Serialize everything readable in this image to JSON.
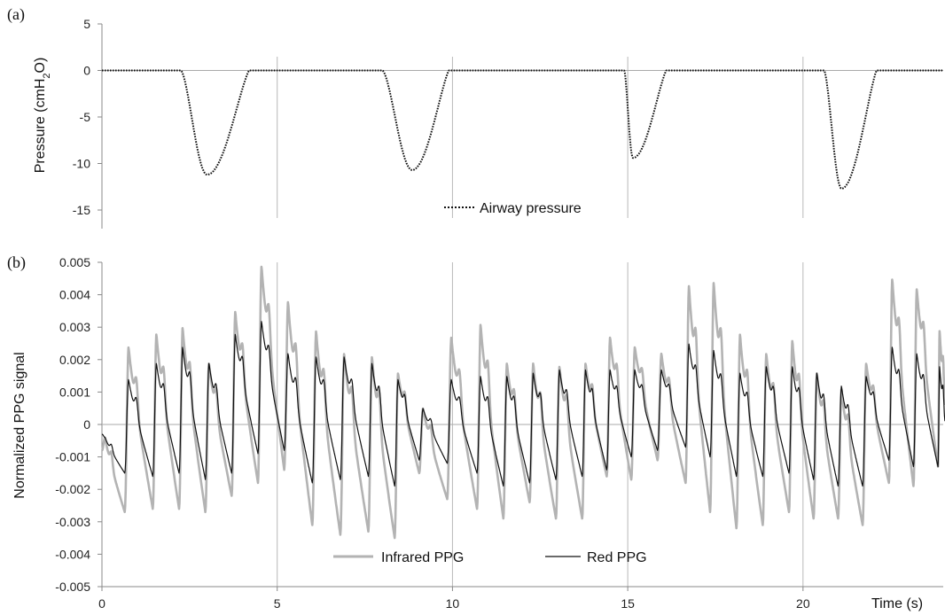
{
  "chart_data": [
    {
      "panel_label": "(a)",
      "type": "scatter",
      "ylabel_main": "Pressure (cmH",
      "ylabel_sub": "2",
      "ylabel_end": "O)",
      "ylim": [
        -17,
        5
      ],
      "yticks": [
        5,
        0,
        -5,
        -10,
        -15
      ],
      "xlim": [
        0,
        24
      ],
      "grid_x": [
        5,
        10,
        15,
        20
      ],
      "legend_placement": "bottom-center",
      "series": [
        {
          "name": "Airway pressure",
          "color": "#111111",
          "style": "dotted",
          "dips": [
            {
              "start": 2.25,
              "min_t": 3.0,
              "min": -11.2,
              "end": 4.2
            },
            {
              "start": 8.0,
              "min_t": 8.85,
              "min": -10.7,
              "end": 9.9
            },
            {
              "start": 14.9,
              "min_t": 15.15,
              "min": -9.4,
              "end": 16.1
            },
            {
              "start": 20.6,
              "min_t": 21.1,
              "min": -12.7,
              "end": 22.1
            }
          ]
        }
      ]
    },
    {
      "panel_label": "(b)",
      "type": "line",
      "ylabel": "Normalized PPG signal",
      "xlabel": "Time (s)",
      "ylim": [
        -0.005,
        0.005
      ],
      "yticks": [
        "0.005",
        "0.004",
        "0.003",
        "0.002",
        "0.001",
        "0",
        "-0.001",
        "-0.002",
        "-0.003",
        "-0.004",
        "-0.005"
      ],
      "xlim": [
        0,
        24
      ],
      "xticks": [
        0,
        5,
        10,
        15,
        20
      ],
      "grid_x": [
        5,
        10,
        15,
        20
      ],
      "legend_placement": "bottom-center",
      "series": [
        {
          "name": "Infrared PPG",
          "color": "#b3b3b3",
          "beat_times": [
            0.0,
            0.65,
            1.45,
            2.2,
            2.95,
            3.7,
            4.45,
            5.2,
            6.0,
            6.8,
            7.6,
            8.35,
            9.05,
            9.85,
            10.7,
            11.45,
            12.2,
            12.95,
            13.7,
            14.4,
            15.1,
            15.85,
            16.65,
            17.35,
            18.1,
            18.85,
            19.6,
            20.3,
            21.0,
            21.7,
            22.45,
            23.15,
            23.85
          ],
          "peaks": [
            -0.0004,
            0.0024,
            0.0028,
            0.003,
            0.0019,
            0.0035,
            0.0049,
            0.0038,
            0.0029,
            0.0022,
            0.0021,
            0.0016,
            0.0005,
            0.0027,
            0.0031,
            0.0019,
            0.0019,
            0.0018,
            0.0019,
            0.0027,
            0.0024,
            0.0022,
            0.0043,
            0.0044,
            0.0028,
            0.0022,
            0.0026,
            0.0016,
            0.0011,
            0.0019,
            0.0045,
            0.0042,
            0.0029
          ],
          "troughs": [
            -0.0008,
            -0.0027,
            -0.0026,
            -0.0026,
            -0.0027,
            -0.0022,
            -0.0018,
            -0.0014,
            -0.0031,
            -0.0034,
            -0.0033,
            -0.0035,
            -0.0015,
            -0.0023,
            -0.0026,
            -0.0029,
            -0.0024,
            -0.0029,
            -0.0029,
            -0.0016,
            -0.0017,
            -0.0011,
            -0.0018,
            -0.0027,
            -0.0032,
            -0.0031,
            -0.0027,
            -0.0029,
            -0.0029,
            -0.0031,
            -0.0018,
            -0.0019,
            -0.0013
          ]
        },
        {
          "name": "Red PPG",
          "color": "#111111",
          "beat_times": [
            0.0,
            0.65,
            1.45,
            2.2,
            2.95,
            3.7,
            4.45,
            5.2,
            6.0,
            6.8,
            7.6,
            8.35,
            9.05,
            9.85,
            10.7,
            11.45,
            12.2,
            12.95,
            13.7,
            14.4,
            15.1,
            15.85,
            16.65,
            17.35,
            18.1,
            18.85,
            19.6,
            20.3,
            21.0,
            21.7,
            22.45,
            23.15,
            23.85
          ],
          "peaks": [
            -0.0004,
            0.0014,
            0.0019,
            0.0024,
            0.0019,
            0.0028,
            0.0032,
            0.0022,
            0.0021,
            0.0021,
            0.0019,
            0.0014,
            0.0005,
            0.0014,
            0.0015,
            0.0015,
            0.0016,
            0.0017,
            0.0017,
            0.0017,
            0.0017,
            0.0017,
            0.0025,
            0.0023,
            0.0016,
            0.0018,
            0.0018,
            0.0016,
            0.0012,
            0.0015,
            0.0024,
            0.0022,
            0.0018
          ],
          "troughs": [
            -0.0003,
            -0.0015,
            -0.0016,
            -0.0015,
            -0.0017,
            -0.0015,
            -0.0009,
            -0.0008,
            -0.0018,
            -0.0017,
            -0.0016,
            -0.0019,
            -0.0011,
            -0.0012,
            -0.0015,
            -0.0019,
            -0.0018,
            -0.0017,
            -0.0016,
            -0.0014,
            -0.001,
            -0.0008,
            -0.0007,
            -0.001,
            -0.0016,
            -0.0016,
            -0.0015,
            -0.0017,
            -0.0019,
            -0.0019,
            -0.0011,
            -0.0013,
            -0.0013
          ]
        }
      ]
    }
  ]
}
